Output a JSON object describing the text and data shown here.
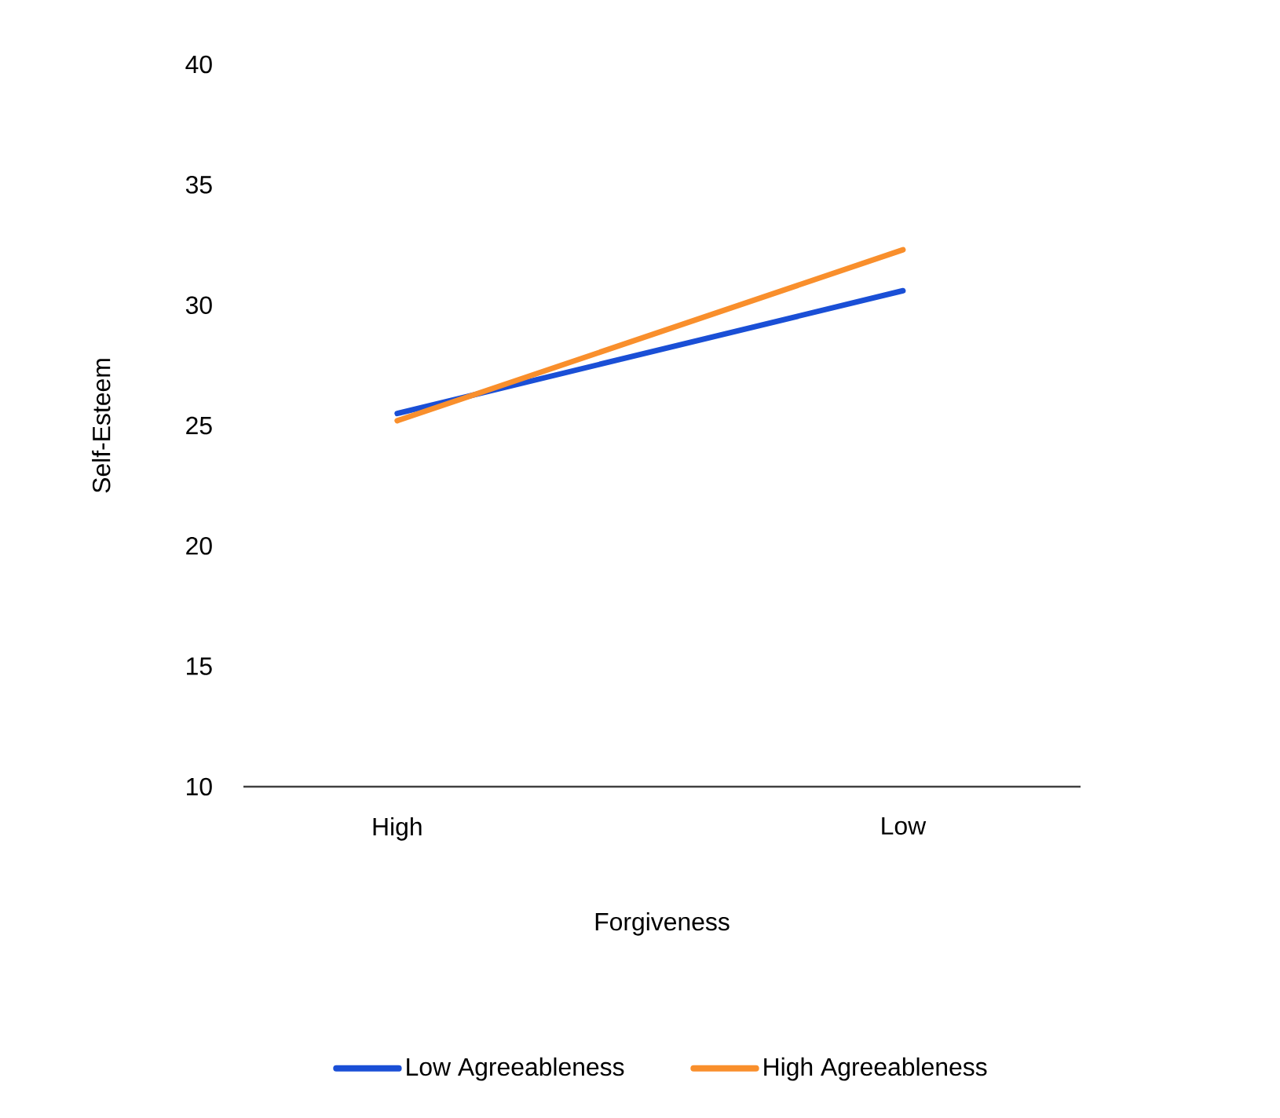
{
  "chart_data": {
    "type": "line",
    "xlabel": "Forgiveness",
    "ylabel": "Self-Esteem",
    "categories": [
      "High",
      "Low"
    ],
    "series": [
      {
        "name": "Low Agreeableness",
        "color": "#1a4fd6",
        "values": [
          25.5,
          30.6
        ]
      },
      {
        "name": "High Agreeableness",
        "color": "#f98f2c",
        "values": [
          25.2,
          32.3
        ]
      }
    ],
    "ylim": [
      10,
      40
    ],
    "yticks": [
      10,
      15,
      20,
      25,
      30,
      35,
      40
    ],
    "legend": "bottom",
    "marker": "none",
    "line_style": "solid"
  }
}
